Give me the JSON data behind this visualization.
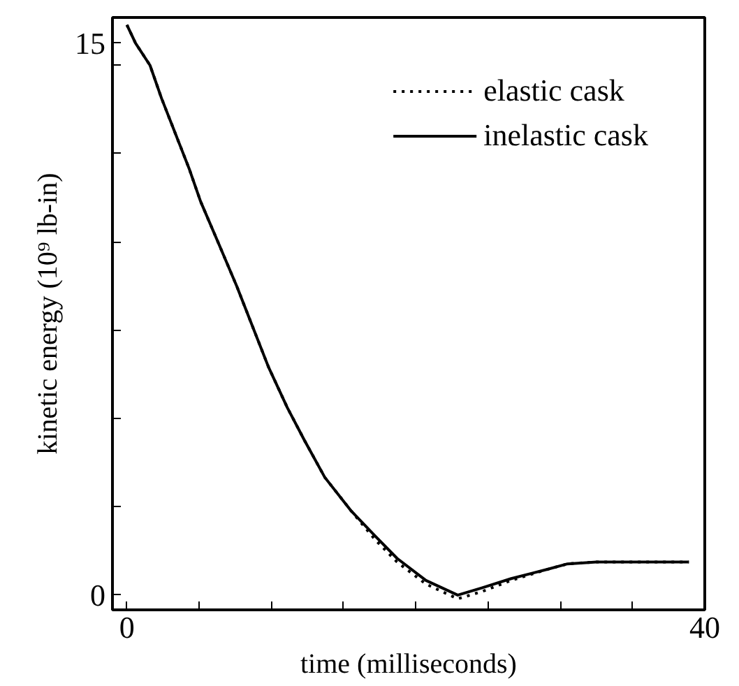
{
  "chart_data": {
    "type": "line",
    "xlabel": "time (milliseconds)",
    "ylabel": "kinetic energy (10⁹ lb-in)",
    "xlim": [
      -1,
      40
    ],
    "ylim": [
      -0.4,
      15.7
    ],
    "xticks": [
      0,
      {
        "value": 5,
        "label": null
      },
      {
        "value": 10,
        "label": null
      },
      {
        "value": 15,
        "label": null
      },
      {
        "value": 20,
        "label": null
      },
      {
        "value": 25,
        "label": null
      },
      {
        "value": 30,
        "label": null
      },
      {
        "value": 35,
        "label": null
      },
      40
    ],
    "yticks": [
      0,
      {
        "value": 2.4,
        "label": null
      },
      {
        "value": 4.8,
        "label": null
      },
      {
        "value": 7.2,
        "label": null
      },
      {
        "value": 9.6,
        "label": null
      },
      {
        "value": 12,
        "label": null
      },
      {
        "value": 14.4,
        "label": null
      },
      15
    ],
    "grid": false,
    "legend": "top right",
    "x": [
      0,
      0.6,
      1.6,
      2.4,
      3.4,
      4.3,
      5.1,
      6.3,
      7.6,
      8.8,
      9.8,
      11.1,
      12.3,
      13.7,
      15.5,
      17.2,
      18.7,
      20.7,
      22.9,
      24.6,
      26.6,
      29.1,
      30.5,
      32.5,
      35.5,
      38.9
    ],
    "series": [
      {
        "name": "elastic cask",
        "color": "#000000",
        "line_style": "dotted",
        "values": [
          15.5,
          15.0,
          14.4,
          13.5,
          12.5,
          11.6,
          10.7,
          9.6,
          8.4,
          7.2,
          6.2,
          5.1,
          4.2,
          3.2,
          2.3,
          1.5,
          0.9,
          0.3,
          -0.1,
          0.1,
          0.4,
          0.7,
          0.85,
          0.9,
          0.9,
          0.9
        ]
      },
      {
        "name": "inelastic cask",
        "color": "#000000",
        "line_style": "solid",
        "values": [
          15.5,
          15.0,
          14.4,
          13.5,
          12.5,
          11.6,
          10.7,
          9.6,
          8.4,
          7.2,
          6.2,
          5.1,
          4.2,
          3.2,
          2.3,
          1.6,
          1.0,
          0.4,
          0.0,
          0.2,
          0.45,
          0.7,
          0.85,
          0.9,
          0.9,
          0.9
        ]
      }
    ]
  }
}
